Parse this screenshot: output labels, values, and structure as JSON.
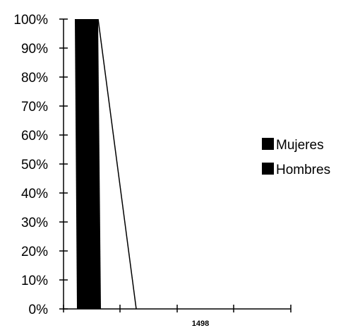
{
  "chart_data": {
    "type": "area",
    "stacked_percent": true,
    "x_tick_labels": [
      "1498"
    ],
    "y_tick_labels": [
      "0%",
      "10%",
      "20%",
      "30%",
      "40%",
      "50%",
      "60%",
      "70%",
      "80%",
      "90%",
      "100%"
    ],
    "ylim": [
      0,
      100
    ],
    "series": [
      {
        "name": "Mujeres",
        "values": [
          0,
          0
        ]
      },
      {
        "name": "Hombres",
        "values": [
          100,
          0
        ]
      }
    ],
    "legend_position": "right",
    "colors": {
      "series": "#000000",
      "axis": "#000000",
      "background": "#ffffff"
    }
  }
}
